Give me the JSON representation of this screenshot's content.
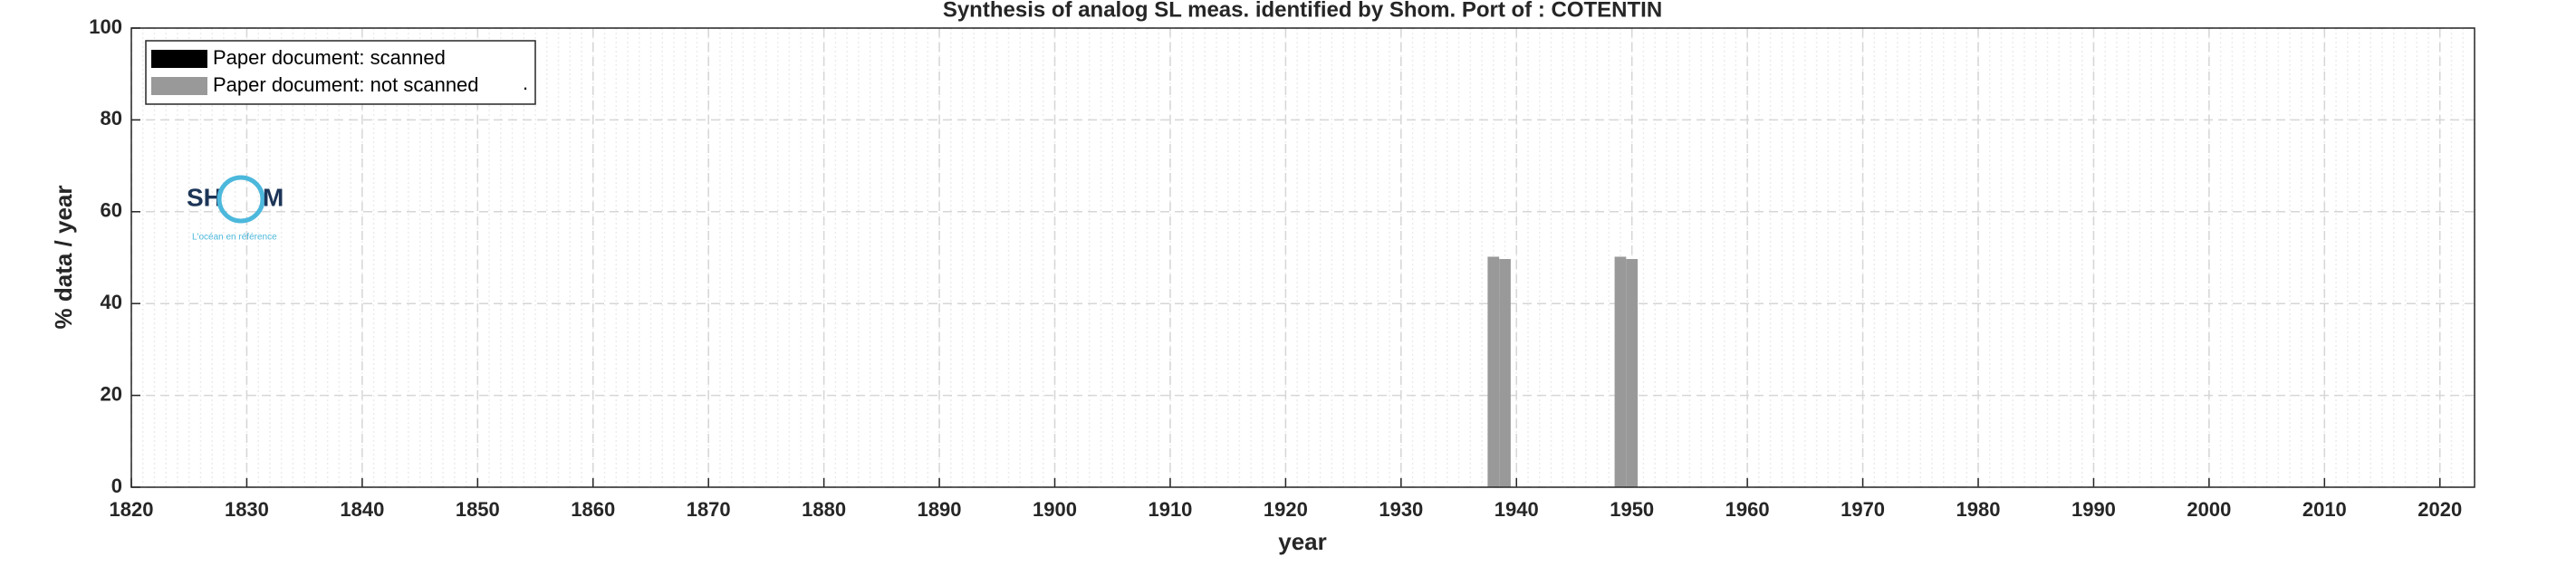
{
  "chart_data": {
    "type": "bar",
    "stacked": true,
    "title": "Synthesis of analog SL meas. identified by Shom. Port of : COTENTIN",
    "xlabel": "year",
    "ylabel": "% data / year",
    "x": [
      1938,
      1939,
      1949,
      1950
    ],
    "series": [
      {
        "name": "Paper document: scanned",
        "color": "#000000",
        "values": [
          0,
          0,
          0,
          0
        ]
      },
      {
        "name": "Paper document: not scanned",
        "color": "#999999",
        "values": [
          50.2,
          49.7,
          50.2,
          49.7
        ]
      }
    ],
    "legend_note": ".",
    "legend": "upper left",
    "xlim": [
      1820,
      2023
    ],
    "xticks": [
      1820,
      1830,
      1840,
      1850,
      1860,
      1870,
      1880,
      1890,
      1900,
      1910,
      1920,
      1930,
      1940,
      1950,
      1960,
      1970,
      1980,
      1990,
      2000,
      2010,
      2020
    ],
    "ylim": [
      0,
      100
    ],
    "yticks": [
      0,
      20,
      40,
      60,
      80,
      100
    ],
    "grid": true,
    "minor_grid": true,
    "logo": {
      "left": "SH",
      "right": "M",
      "tagline": "L'océan en référence"
    }
  }
}
